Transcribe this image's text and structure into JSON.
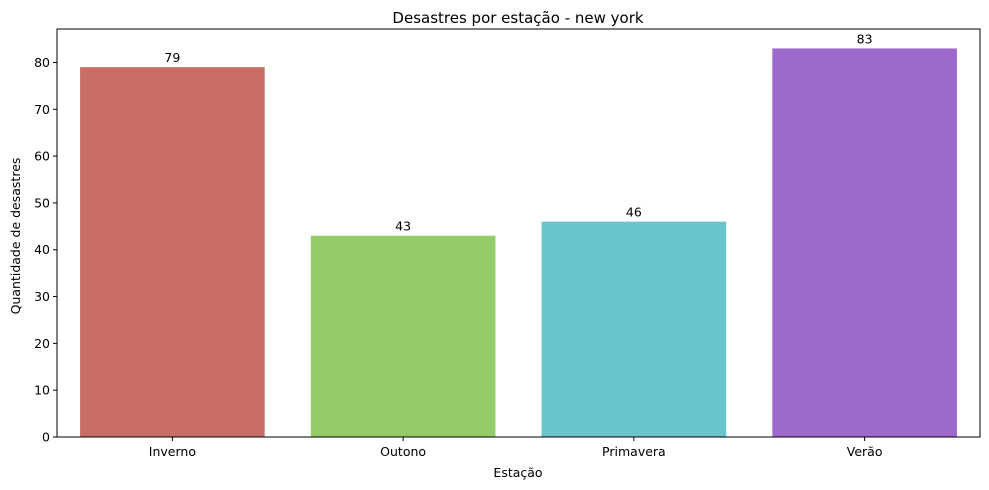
{
  "chart_data": {
    "type": "bar",
    "title": "Desastres por estação - new york",
    "xlabel": "Estação",
    "ylabel": "Quantidade de desastres",
    "categories": [
      "Inverno",
      "Outono",
      "Primavera",
      "Verão"
    ],
    "values": [
      79,
      43,
      46,
      83
    ],
    "colors": [
      "#c86e64",
      "#94cc6a",
      "#69c5cc",
      "#9e69cc"
    ],
    "ylim": [
      0,
      87.15
    ],
    "yticks": [
      0,
      10,
      20,
      30,
      40,
      50,
      60,
      70,
      80
    ],
    "grid": false,
    "legend": "none"
  }
}
